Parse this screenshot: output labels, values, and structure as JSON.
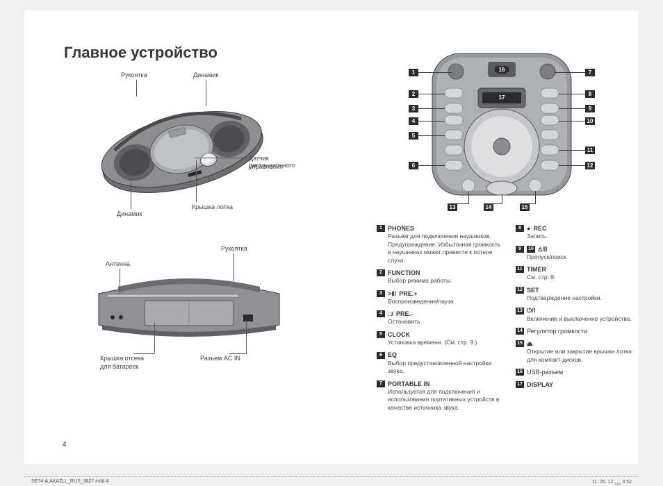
{
  "title": "Главное устройство",
  "labels": {
    "handle": "Рукоятка",
    "speaker": "Динамик",
    "remote_sensor_l1": "Датчик дистанционного",
    "remote_sensor_l2": "управления",
    "tray_cover": "Крышка лотка",
    "antenna": "Антенна",
    "handle2": "Рукоятка",
    "battery_cover_l1": "Крышка отсека",
    "battery_cover_l2": "для батареек",
    "ac_in": "Разъем AC IN"
  },
  "legend_left": [
    {
      "num": "1",
      "title": "PHONES",
      "desc": "Разъем для подключения наушников.\nПредупреждение. Избыточная громкость в наушниках может привести к потере слуха."
    },
    {
      "num": "2",
      "title": "FUNCTION",
      "desc": "Выбор режима работы."
    },
    {
      "num": "3",
      "sym": ">Ⅱ/",
      "title": "PRE.+",
      "desc": "Воспроизведение/пауза"
    },
    {
      "num": "4",
      "sym": "□/",
      "title": "PRE.-",
      "desc": "Остановить"
    },
    {
      "num": "5",
      "title": "CLOCK",
      "desc": "Установка времени. (См. стр. 9.)"
    },
    {
      "num": "6",
      "title": "EQ",
      "desc": "Выбор предустановленной настройки звука."
    },
    {
      "num": "7",
      "title": "PORTABLE IN",
      "desc": "Используется для подключения и использования портативных устройств в качестве источника звука."
    }
  ],
  "legend_right": [
    {
      "num": "8",
      "sym": "●",
      "title": "REC",
      "desc": "Запись."
    },
    {
      "nums": [
        "9",
        "10"
      ],
      "sym": "ꕖ/ꕗ",
      "desc": "Пропуск/поиск"
    },
    {
      "num": "11",
      "title": "TIMER",
      "desc": "См. стр. 9."
    },
    {
      "num": "12",
      "title": "SET",
      "desc": "Подтверждение настройки."
    },
    {
      "num": "13",
      "sym": "⏻/Ⅰ",
      "desc": "Включение и выключение устройства."
    },
    {
      "num": "14",
      "plain": "Регулятор громкости"
    },
    {
      "num": "15",
      "sym": "⏏",
      "desc": "Открытие или закрытие крышки лотка для компакт-дисков."
    },
    {
      "num": "16",
      "plain": "USB-разъем"
    },
    {
      "num": "17",
      "title": "DISPLAY"
    }
  ],
  "pagenum": "4",
  "footer_left": "SB74-A.AKAZLL_RUS_3827.indd   4",
  "footer_right": "11. 05. 12   ␣␣ 3:52"
}
